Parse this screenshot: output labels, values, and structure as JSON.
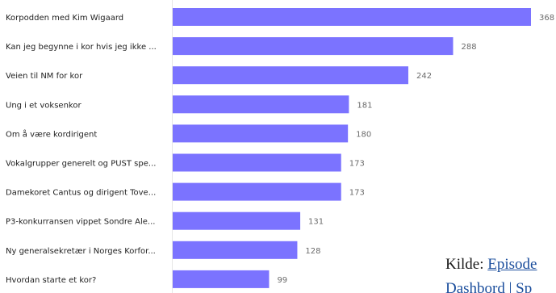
{
  "chart_data": {
    "type": "bar",
    "orientation": "horizontal",
    "bar_color": "#7b73ff",
    "categories": [
      "Korpodden med Kim Wigaard",
      "Kan jeg begynne i kor hvis jeg ikke ...",
      "Veien til NM for kor",
      "Ung i et voksenkor",
      "Om å være kordirigent",
      "Vokalgrupper generelt og PUST spe...",
      "Damekoret Cantus og dirigent Tove...",
      "P3-konkurransen vippet Sondre Ale...",
      "Ny generalsekretær i Norges Korfor...",
      "Hvordan starte et kor?"
    ],
    "values": [
      368,
      288,
      242,
      181,
      180,
      173,
      173,
      131,
      128,
      99
    ],
    "xlim": [
      0,
      368
    ],
    "grid": false
  },
  "source": {
    "prefix": "Kilde: ",
    "link1": "Episode",
    "link2": "Dashbord | Sp"
  }
}
